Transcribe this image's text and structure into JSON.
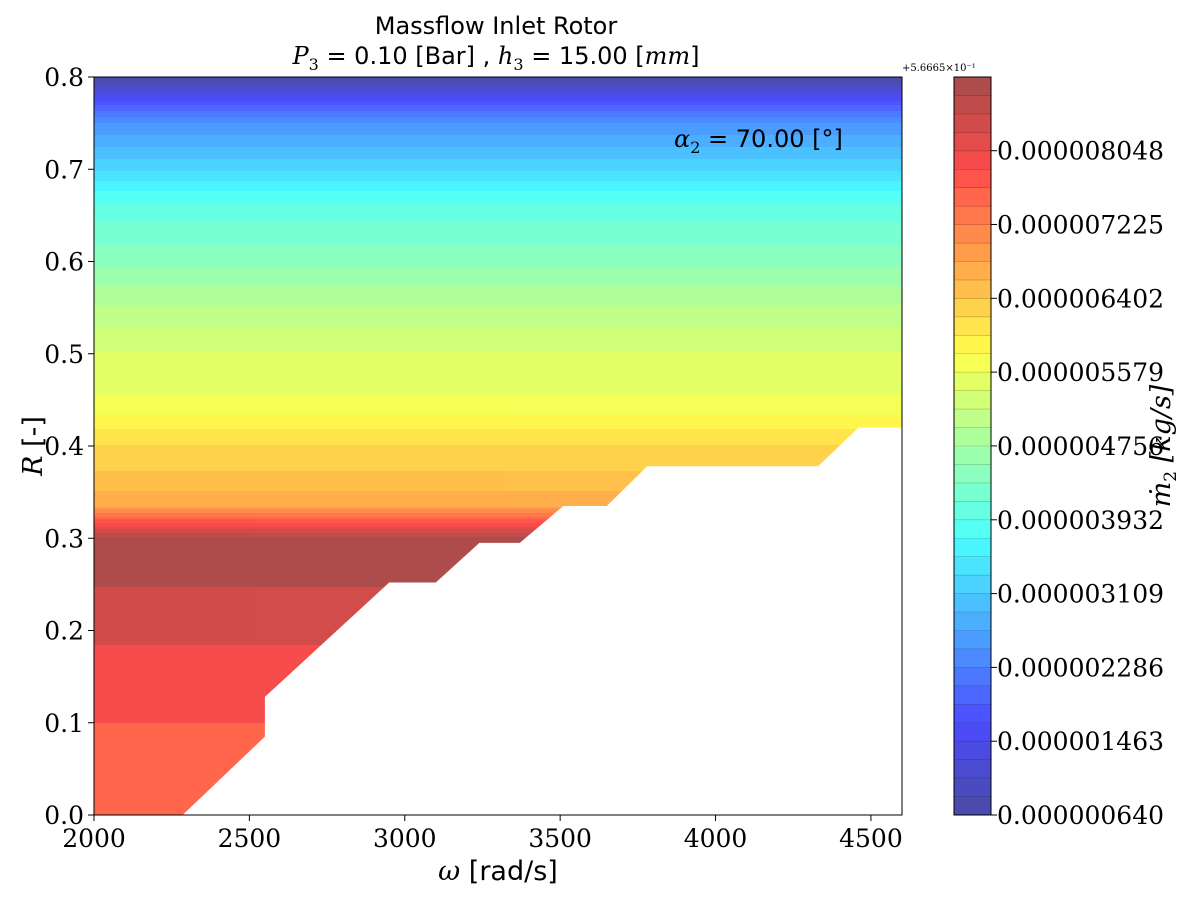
{
  "chart_data": {
    "type": "heatmap",
    "title": "Massflow Inlet Rotor",
    "subtitle": {
      "p_symbol": "P",
      "p_sub": "3",
      "p_value": " = 0.10 [Bar] , ",
      "h_symbol": "h",
      "h_sub": "3",
      "h_value": " = 15.00 [",
      "h_unit": "mm",
      "h_close": "]"
    },
    "annotation": {
      "symbol": "α",
      "sub": "2",
      "value": " = 70.00 [°]"
    },
    "xlabel": {
      "symbol": "ω",
      "unit": " [rad/s]"
    },
    "ylabel": {
      "symbol": "R",
      "unit": " [-]"
    },
    "colorbar_label": {
      "symbol": "ṁ",
      "sub": "2",
      "unit": " [kg/s]"
    },
    "colorbar_offset": "+5.6665×10⁻¹",
    "xlim": [
      2000,
      4600
    ],
    "ylim": [
      0.0,
      0.8
    ],
    "xticks": [
      2000,
      2500,
      3000,
      3500,
      4000,
      4500
    ],
    "yticks": [
      "0.0",
      "0.1",
      "0.2",
      "0.3",
      "0.4",
      "0.5",
      "0.6",
      "0.7",
      "0.8"
    ],
    "colorbar_range": [
      6.4e-07,
      8.87e-06
    ],
    "colorbar_ticks": [
      {
        "value": 6.4e-07,
        "label": "0.000000640"
      },
      {
        "value": 1.463e-06,
        "label": "0.000001463"
      },
      {
        "value": 2.286e-06,
        "label": "0.000002286"
      },
      {
        "value": 3.109e-06,
        "label": "0.000003109"
      },
      {
        "value": 3.932e-06,
        "label": "0.000003932"
      },
      {
        "value": 4.756e-06,
        "label": "0.000004756"
      },
      {
        "value": 5.579e-06,
        "label": "0.000005579"
      },
      {
        "value": 6.402e-06,
        "label": "0.000006402"
      },
      {
        "value": 7.225e-06,
        "label": "0.000007225"
      },
      {
        "value": 8.048e-06,
        "label": "0.000008048"
      }
    ],
    "colorbar_levels": 40,
    "colormap": "jet",
    "alpha": 0.7,
    "valid_region_boundary": [
      [
        2000,
        0.0
      ],
      [
        2285,
        0.0
      ],
      [
        2550,
        0.085
      ],
      [
        2550,
        0.128
      ],
      [
        2950,
        0.252
      ],
      [
        3100,
        0.252
      ],
      [
        3240,
        0.295
      ],
      [
        3370,
        0.295
      ],
      [
        3510,
        0.335
      ],
      [
        3650,
        0.335
      ],
      [
        3780,
        0.378
      ],
      [
        4330,
        0.378
      ],
      [
        4460,
        0.42
      ],
      [
        4600,
        0.42
      ],
      [
        4600,
        0.8
      ],
      [
        2000,
        0.8
      ]
    ],
    "value_profile_by_R": [
      [
        0.0,
        7.5e-06
      ],
      [
        0.1,
        7.5e-06
      ],
      [
        0.1,
        8e-06
      ],
      [
        0.185,
        8e-06
      ],
      [
        0.185,
        8.4e-06
      ],
      [
        0.248,
        8.4e-06
      ],
      [
        0.248,
        8.8e-06
      ],
      [
        0.3,
        8.8e-06
      ],
      [
        0.335,
        6.8e-06
      ],
      [
        0.36,
        6.5e-06
      ],
      [
        0.4,
        6.2e-06
      ],
      [
        0.45,
        5.6e-06
      ],
      [
        0.5,
        5.4e-06
      ],
      [
        0.55,
        5e-06
      ],
      [
        0.6,
        4.5e-06
      ],
      [
        0.66,
        4e-06
      ],
      [
        0.7,
        3.3e-06
      ],
      [
        0.75,
        2.5e-06
      ],
      [
        0.78,
        1.5e-06
      ],
      [
        0.8,
        6e-07
      ]
    ]
  }
}
